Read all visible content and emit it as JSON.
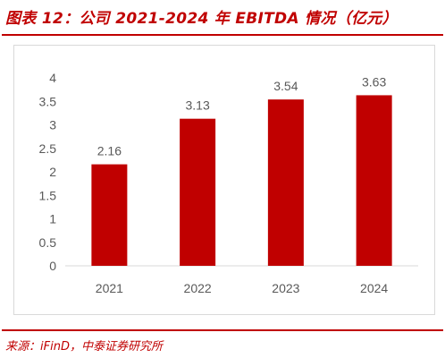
{
  "header": {
    "title": "图表 12：公司 2021-2024 年 EBITDA 情况（亿元）"
  },
  "footer": {
    "source": "来源：iFinD，中泰证券研究所"
  },
  "colors": {
    "accent": "#c00000",
    "bar": "#c00000",
    "axis": "#d9d9d9",
    "text": "#595959"
  },
  "chart_data": {
    "type": "bar",
    "categories": [
      "2021",
      "2022",
      "2023",
      "2024"
    ],
    "values": [
      2.16,
      3.13,
      3.54,
      3.63
    ],
    "value_labels": [
      "2.16",
      "3.13",
      "3.54",
      "3.63"
    ],
    "yticks": [
      "0",
      "0.5",
      "1",
      "1.5",
      "2",
      "2.5",
      "3",
      "3.5",
      "4"
    ],
    "ylim": [
      0,
      4
    ],
    "grid": false,
    "title": "",
    "xlabel": "",
    "ylabel": ""
  }
}
